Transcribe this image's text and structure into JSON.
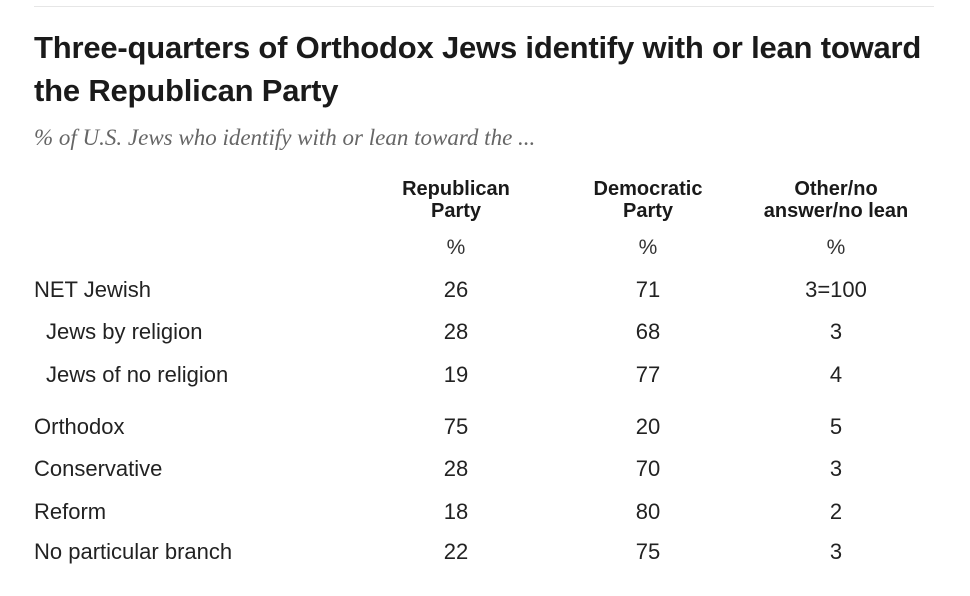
{
  "title": "Three-quarters of Orthodox Jews identify with or lean toward the Republican Party",
  "subtitle": "% of U.S. Jews who identify with or lean toward the ...",
  "chart_data": {
    "type": "table",
    "columns": [
      {
        "header": "Republican\nParty",
        "unit": "%"
      },
      {
        "header": "Democratic\nParty",
        "unit": "%"
      },
      {
        "header": "Other/no\nanswer/no lean",
        "unit": "%"
      }
    ],
    "rows": [
      {
        "label": "NET Jewish",
        "indent": false,
        "values": [
          "26",
          "71",
          "3=100"
        ]
      },
      {
        "label": "Jews by religion",
        "indent": true,
        "values": [
          "28",
          "68",
          "3"
        ]
      },
      {
        "label": "Jews of no religion",
        "indent": true,
        "values": [
          "19",
          "77",
          "4"
        ]
      },
      {
        "label": "Orthodox",
        "indent": false,
        "values": [
          "75",
          "20",
          "5"
        ]
      },
      {
        "label": "Conservative",
        "indent": false,
        "values": [
          "28",
          "70",
          "3"
        ]
      },
      {
        "label": "Reform",
        "indent": false,
        "values": [
          "18",
          "80",
          "2"
        ]
      },
      {
        "label": "No particular branch",
        "indent": false,
        "values": [
          "22",
          "75",
          "3"
        ]
      }
    ]
  }
}
